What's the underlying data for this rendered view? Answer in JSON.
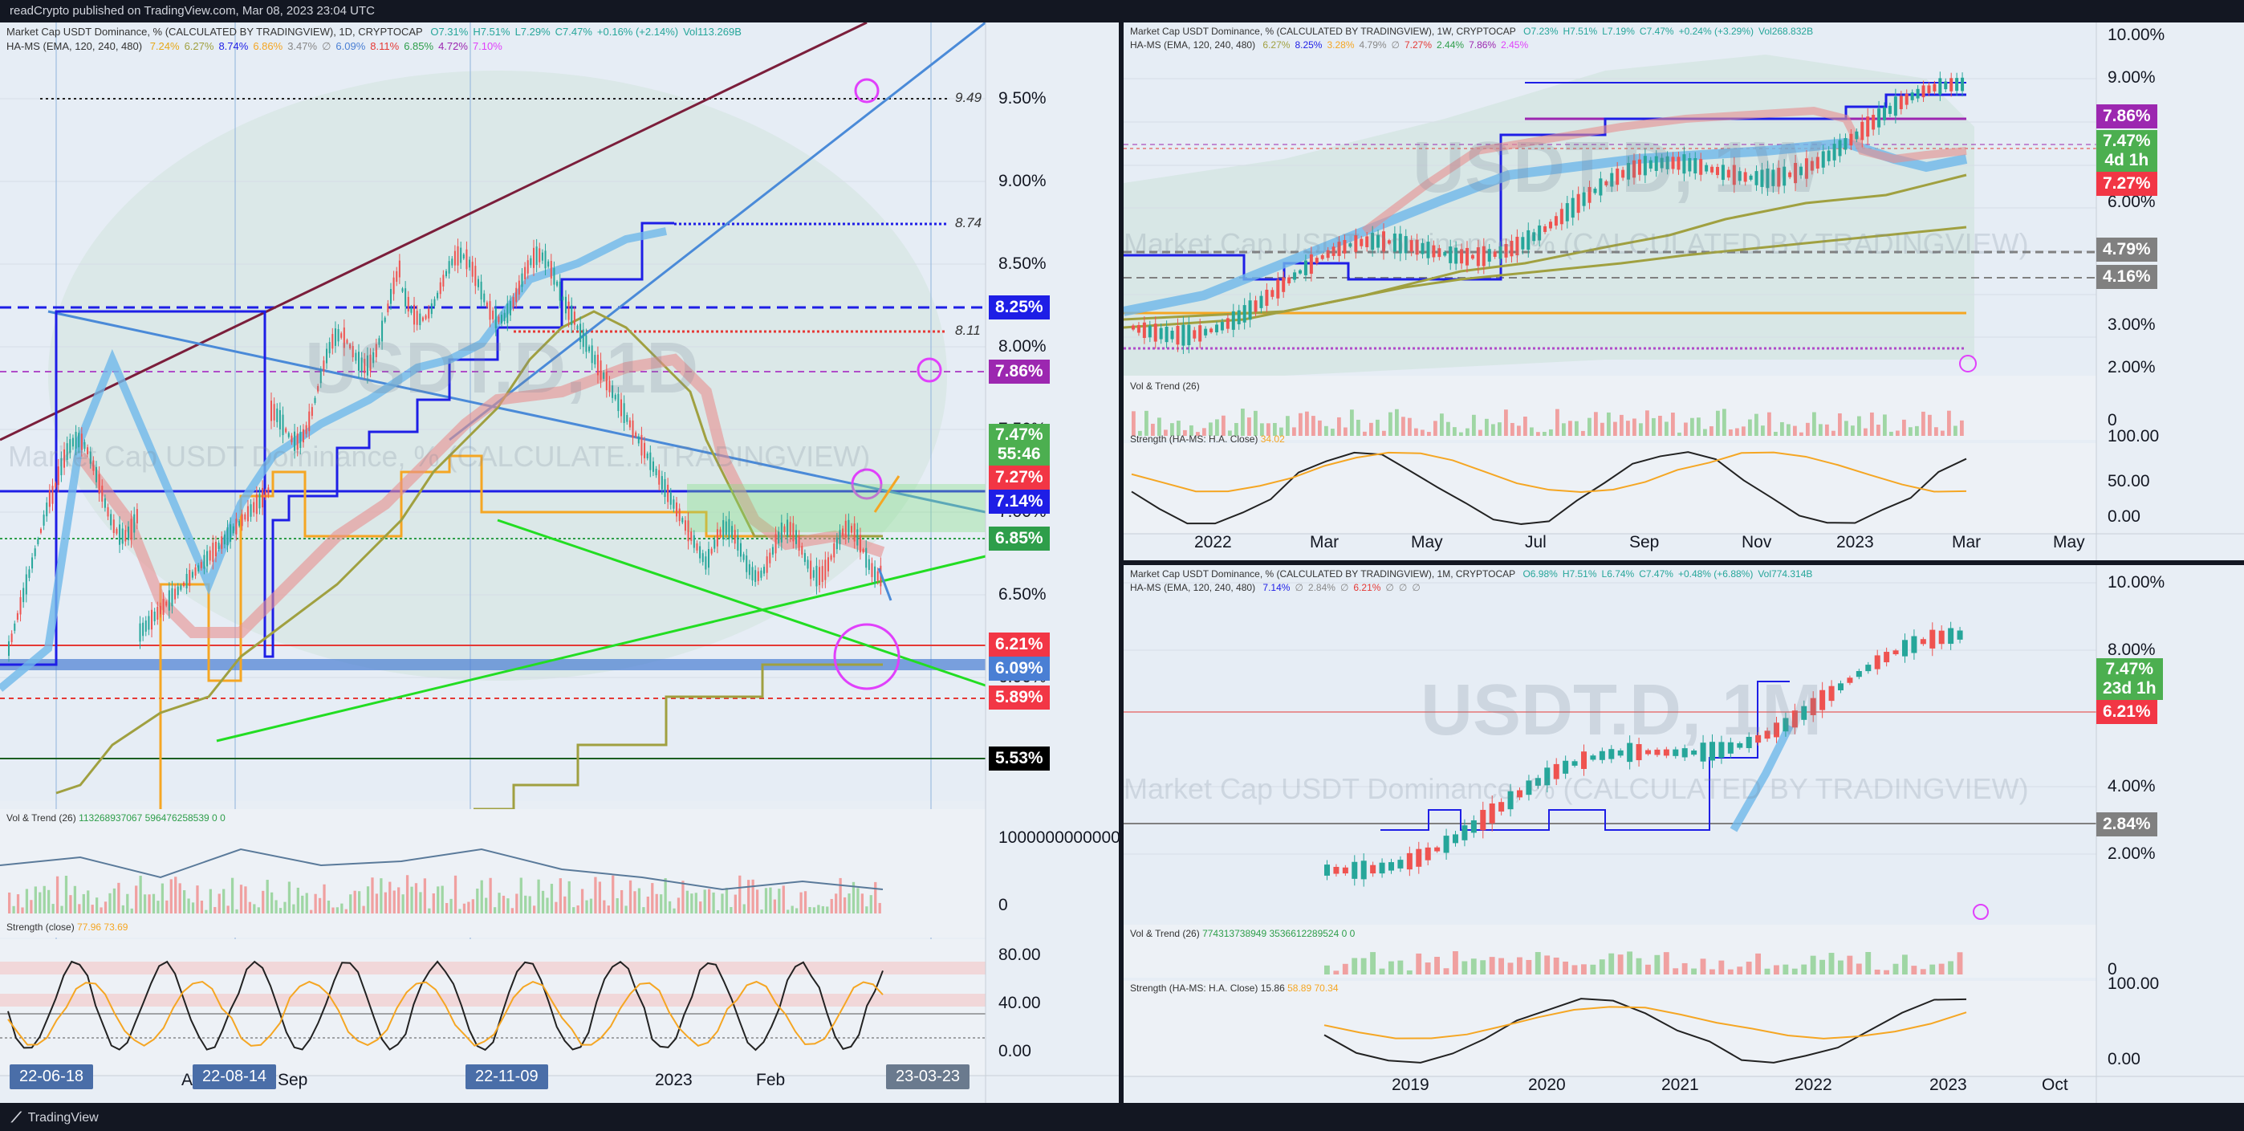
{
  "header": {
    "text": "readCrypto published on TradingView.com, Mar 08, 2023 23:04 UTC"
  },
  "footer": {
    "brand": "TradingView"
  },
  "panes": {
    "daily": {
      "legend1": "Market Cap USDT Dominance, % (CALCULATED BY TRADINGVIEW), 1D, CRYPTOCAP",
      "ohlc": [
        "O7.31%",
        "H7.51%",
        "L7.29%",
        "C7.47%",
        "+0.16% (+2.14%)",
        "Vol113.269B"
      ],
      "legend2": "HA-MS (EMA, 120, 240, 480)",
      "ha_values": [
        "7.24%",
        "6.27%",
        "8.74%",
        "6.86%",
        "3.47%",
        "∅",
        "6.09%",
        "8.11%",
        "6.85%",
        "4.72%",
        "7.10%"
      ],
      "watermark_symbol": "USDT.D, 1D",
      "watermark_name": "Market Cap USDT Dominance, % (CALCULATE... TRADINGVIEW)",
      "vol_legend": "Vol & Trend (26)",
      "vol_values": [
        "113268937067",
        "596476258539",
        "0",
        "0"
      ],
      "strength_legend": "Strength (close)",
      "strength_values": [
        "77.96",
        "73.69"
      ],
      "price_axis": [
        "9.50%",
        "9.00%",
        "8.50%",
        "8.00%",
        "7.50%",
        "7.00%",
        "6.50%",
        "6.00%"
      ],
      "vol_axis": [
        "1000000000000",
        "0"
      ],
      "strength_axis": [
        "80.00",
        "40.00",
        "0.00"
      ],
      "level_notes": [
        "9.49",
        "8.74",
        "8.11"
      ],
      "tags": [
        {
          "text": "8.25%",
          "color": "#1e1ee6"
        },
        {
          "text": "7.86%",
          "color": "#9c27b0"
        },
        {
          "text": "7.47%\n55:46",
          "color": "#4caf50"
        },
        {
          "text": "7.27%",
          "color": "#f23645"
        },
        {
          "text": "7.14%",
          "color": "#1e1ee6"
        },
        {
          "text": "6.85%",
          "color": "#2e9e4a"
        },
        {
          "text": "6.21%",
          "color": "#f23645"
        },
        {
          "text": "6.09%",
          "color": "#4a7fd4"
        },
        {
          "text": "5.89%",
          "color": "#f23645"
        },
        {
          "text": "5.53%",
          "color": "#000000"
        }
      ],
      "x_axis": [
        "A",
        "Sep",
        "2023",
        "Feb"
      ],
      "date_pills": [
        "22-06-18",
        "22-08-14",
        "22-11-09",
        "23-03-23"
      ]
    },
    "weekly": {
      "legend1": "Market Cap USDT Dominance, % (CALCULATED BY TRADINGVIEW), 1W, CRYPTOCAP",
      "ohlc": [
        "O7.23%",
        "H7.51%",
        "L7.19%",
        "C7.47%",
        "+0.24% (+3.29%)",
        "Vol268.832B"
      ],
      "legend2": "HA-MS (EMA, 120, 240, 480)",
      "ha_values": [
        "6.27%",
        "8.25%",
        "3.28%",
        "4.79%",
        "∅",
        "7.27%",
        "2.44%",
        "7.86%",
        "2.45%"
      ],
      "watermark_symbol": "USDT.D, 1W",
      "watermark_name": "Market Cap USDT Dominance, % (CALCULATED BY TRADINGVIEW)",
      "vol_legend": "Vol & Trend (26)",
      "strength_legend": "Strength (HA-MS: H.A. Close)",
      "strength_values": [
        "34.02"
      ],
      "price_axis": [
        "10.00%",
        "9.00%",
        "6.00%",
        "3.00%",
        "2.00%",
        "0"
      ],
      "strength_axis": [
        "100.00",
        "50.00",
        "0.00"
      ],
      "tags": [
        {
          "text": "7.86%",
          "color": "#9c27b0"
        },
        {
          "text": "7.47%\n4d 1h",
          "color": "#4caf50"
        },
        {
          "text": "7.27%",
          "color": "#f23645"
        },
        {
          "text": "4.79%",
          "color": "#808080"
        },
        {
          "text": "4.16%",
          "color": "#808080"
        }
      ],
      "x_axis": [
        "2022",
        "Mar",
        "May",
        "Jul",
        "Sep",
        "Nov",
        "2023",
        "Mar",
        "May"
      ]
    },
    "monthly": {
      "legend1": "Market Cap USDT Dominance, % (CALCULATED BY TRADINGVIEW), 1M, CRYPTOCAP",
      "ohlc": [
        "O6.98%",
        "H7.51%",
        "L6.74%",
        "C7.47%",
        "+0.48% (+6.88%)",
        "Vol774.314B"
      ],
      "legend2": "HA-MS (EMA, 120, 240, 480)",
      "ha_values": [
        "7.14%",
        "∅",
        "2.84%",
        "∅",
        "6.21%",
        "∅",
        "∅",
        "∅"
      ],
      "watermark_symbol": "USDT.D, 1M",
      "watermark_name": "Market Cap USDT Dominance, % (CALCULATED BY TRADINGVIEW)",
      "vol_legend": "Vol & Trend (26)",
      "vol_values": [
        "774313738949",
        "3536612289524",
        "0",
        "0"
      ],
      "strength_legend": "Strength (HA-MS: H.A. Close)",
      "strength_values": [
        "15.86",
        "58.89",
        "70.34"
      ],
      "price_axis": [
        "10.00%",
        "8.00%",
        "4.00%",
        "2.00%",
        "0"
      ],
      "strength_axis": [
        "100.00",
        "0.00"
      ],
      "tags": [
        {
          "text": "7.47%\n23d 1h",
          "color": "#4caf50"
        },
        {
          "text": "6.21%",
          "color": "#f23645"
        },
        {
          "text": "2.84%",
          "color": "#808080"
        }
      ],
      "x_axis": [
        "2019",
        "2020",
        "2021",
        "2022",
        "2023",
        "Oct"
      ]
    }
  }
}
